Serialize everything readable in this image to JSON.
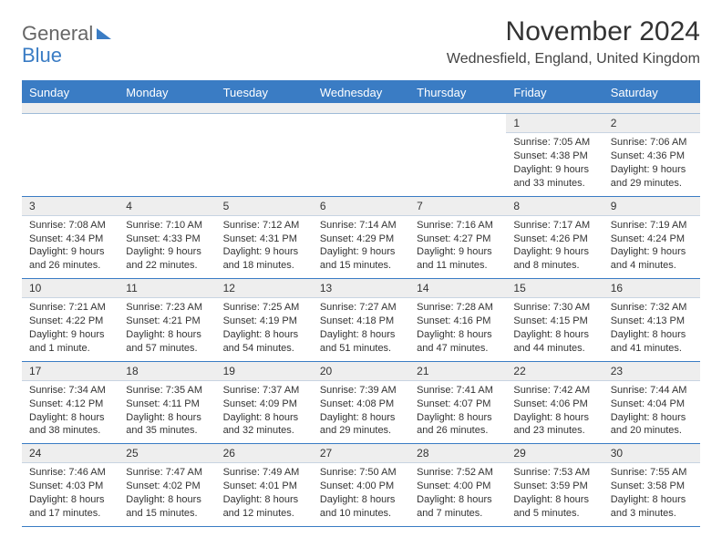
{
  "logo": {
    "general": "General",
    "blue": "Blue"
  },
  "title": {
    "month_year": "November 2024",
    "location": "Wednesfield, England, United Kingdom"
  },
  "colors": {
    "accent": "#3a7cc4",
    "header_bg": "#3a7cc4",
    "row_border": "#3a7cc4",
    "daynum_bg": "#eeeeee"
  },
  "day_names": [
    "Sunday",
    "Monday",
    "Tuesday",
    "Wednesday",
    "Thursday",
    "Friday",
    "Saturday"
  ],
  "weeks": [
    [
      {
        "day": "",
        "sunrise": "",
        "sunset": "",
        "daylight": ""
      },
      {
        "day": "",
        "sunrise": "",
        "sunset": "",
        "daylight": ""
      },
      {
        "day": "",
        "sunrise": "",
        "sunset": "",
        "daylight": ""
      },
      {
        "day": "",
        "sunrise": "",
        "sunset": "",
        "daylight": ""
      },
      {
        "day": "",
        "sunrise": "",
        "sunset": "",
        "daylight": ""
      },
      {
        "day": "1",
        "sunrise": "Sunrise: 7:05 AM",
        "sunset": "Sunset: 4:38 PM",
        "daylight": "Daylight: 9 hours and 33 minutes."
      },
      {
        "day": "2",
        "sunrise": "Sunrise: 7:06 AM",
        "sunset": "Sunset: 4:36 PM",
        "daylight": "Daylight: 9 hours and 29 minutes."
      }
    ],
    [
      {
        "day": "3",
        "sunrise": "Sunrise: 7:08 AM",
        "sunset": "Sunset: 4:34 PM",
        "daylight": "Daylight: 9 hours and 26 minutes."
      },
      {
        "day": "4",
        "sunrise": "Sunrise: 7:10 AM",
        "sunset": "Sunset: 4:33 PM",
        "daylight": "Daylight: 9 hours and 22 minutes."
      },
      {
        "day": "5",
        "sunrise": "Sunrise: 7:12 AM",
        "sunset": "Sunset: 4:31 PM",
        "daylight": "Daylight: 9 hours and 18 minutes."
      },
      {
        "day": "6",
        "sunrise": "Sunrise: 7:14 AM",
        "sunset": "Sunset: 4:29 PM",
        "daylight": "Daylight: 9 hours and 15 minutes."
      },
      {
        "day": "7",
        "sunrise": "Sunrise: 7:16 AM",
        "sunset": "Sunset: 4:27 PM",
        "daylight": "Daylight: 9 hours and 11 minutes."
      },
      {
        "day": "8",
        "sunrise": "Sunrise: 7:17 AM",
        "sunset": "Sunset: 4:26 PM",
        "daylight": "Daylight: 9 hours and 8 minutes."
      },
      {
        "day": "9",
        "sunrise": "Sunrise: 7:19 AM",
        "sunset": "Sunset: 4:24 PM",
        "daylight": "Daylight: 9 hours and 4 minutes."
      }
    ],
    [
      {
        "day": "10",
        "sunrise": "Sunrise: 7:21 AM",
        "sunset": "Sunset: 4:22 PM",
        "daylight": "Daylight: 9 hours and 1 minute."
      },
      {
        "day": "11",
        "sunrise": "Sunrise: 7:23 AM",
        "sunset": "Sunset: 4:21 PM",
        "daylight": "Daylight: 8 hours and 57 minutes."
      },
      {
        "day": "12",
        "sunrise": "Sunrise: 7:25 AM",
        "sunset": "Sunset: 4:19 PM",
        "daylight": "Daylight: 8 hours and 54 minutes."
      },
      {
        "day": "13",
        "sunrise": "Sunrise: 7:27 AM",
        "sunset": "Sunset: 4:18 PM",
        "daylight": "Daylight: 8 hours and 51 minutes."
      },
      {
        "day": "14",
        "sunrise": "Sunrise: 7:28 AM",
        "sunset": "Sunset: 4:16 PM",
        "daylight": "Daylight: 8 hours and 47 minutes."
      },
      {
        "day": "15",
        "sunrise": "Sunrise: 7:30 AM",
        "sunset": "Sunset: 4:15 PM",
        "daylight": "Daylight: 8 hours and 44 minutes."
      },
      {
        "day": "16",
        "sunrise": "Sunrise: 7:32 AM",
        "sunset": "Sunset: 4:13 PM",
        "daylight": "Daylight: 8 hours and 41 minutes."
      }
    ],
    [
      {
        "day": "17",
        "sunrise": "Sunrise: 7:34 AM",
        "sunset": "Sunset: 4:12 PM",
        "daylight": "Daylight: 8 hours and 38 minutes."
      },
      {
        "day": "18",
        "sunrise": "Sunrise: 7:35 AM",
        "sunset": "Sunset: 4:11 PM",
        "daylight": "Daylight: 8 hours and 35 minutes."
      },
      {
        "day": "19",
        "sunrise": "Sunrise: 7:37 AM",
        "sunset": "Sunset: 4:09 PM",
        "daylight": "Daylight: 8 hours and 32 minutes."
      },
      {
        "day": "20",
        "sunrise": "Sunrise: 7:39 AM",
        "sunset": "Sunset: 4:08 PM",
        "daylight": "Daylight: 8 hours and 29 minutes."
      },
      {
        "day": "21",
        "sunrise": "Sunrise: 7:41 AM",
        "sunset": "Sunset: 4:07 PM",
        "daylight": "Daylight: 8 hours and 26 minutes."
      },
      {
        "day": "22",
        "sunrise": "Sunrise: 7:42 AM",
        "sunset": "Sunset: 4:06 PM",
        "daylight": "Daylight: 8 hours and 23 minutes."
      },
      {
        "day": "23",
        "sunrise": "Sunrise: 7:44 AM",
        "sunset": "Sunset: 4:04 PM",
        "daylight": "Daylight: 8 hours and 20 minutes."
      }
    ],
    [
      {
        "day": "24",
        "sunrise": "Sunrise: 7:46 AM",
        "sunset": "Sunset: 4:03 PM",
        "daylight": "Daylight: 8 hours and 17 minutes."
      },
      {
        "day": "25",
        "sunrise": "Sunrise: 7:47 AM",
        "sunset": "Sunset: 4:02 PM",
        "daylight": "Daylight: 8 hours and 15 minutes."
      },
      {
        "day": "26",
        "sunrise": "Sunrise: 7:49 AM",
        "sunset": "Sunset: 4:01 PM",
        "daylight": "Daylight: 8 hours and 12 minutes."
      },
      {
        "day": "27",
        "sunrise": "Sunrise: 7:50 AM",
        "sunset": "Sunset: 4:00 PM",
        "daylight": "Daylight: 8 hours and 10 minutes."
      },
      {
        "day": "28",
        "sunrise": "Sunrise: 7:52 AM",
        "sunset": "Sunset: 4:00 PM",
        "daylight": "Daylight: 8 hours and 7 minutes."
      },
      {
        "day": "29",
        "sunrise": "Sunrise: 7:53 AM",
        "sunset": "Sunset: 3:59 PM",
        "daylight": "Daylight: 8 hours and 5 minutes."
      },
      {
        "day": "30",
        "sunrise": "Sunrise: 7:55 AM",
        "sunset": "Sunset: 3:58 PM",
        "daylight": "Daylight: 8 hours and 3 minutes."
      }
    ]
  ]
}
